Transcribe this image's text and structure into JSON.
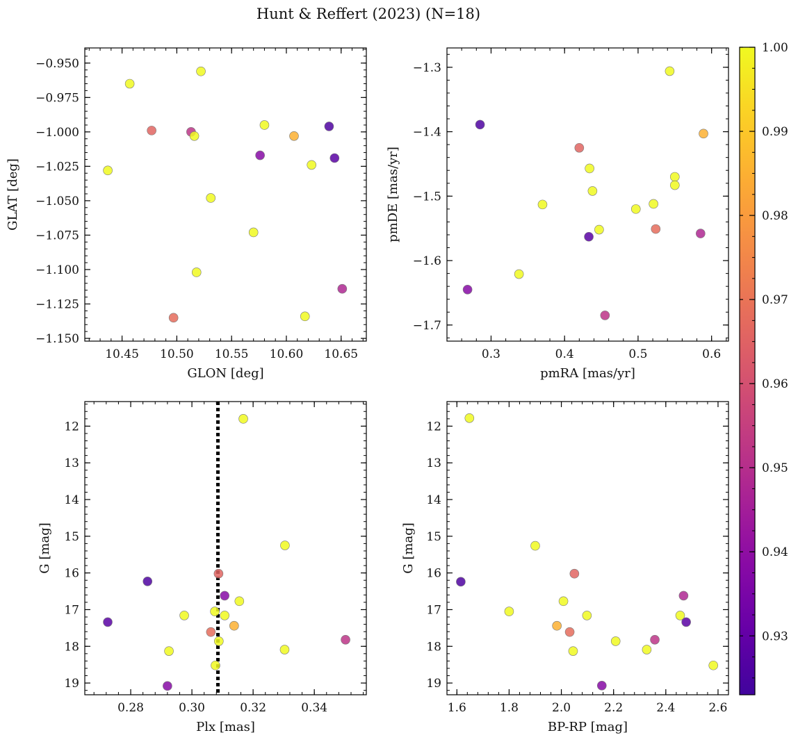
{
  "title": "Hunt & Reffert (2023) (N=18)",
  "colorbar": {
    "cmap": "plasma",
    "range": [
      0.923,
      1.0
    ],
    "ticks": [
      0.93,
      0.94,
      0.95,
      0.96,
      0.97,
      0.98,
      0.99,
      1.0
    ],
    "tick_labels": [
      "0.93",
      "0.94",
      "0.95",
      "0.96",
      "0.97",
      "0.98",
      "0.99",
      "1.00"
    ]
  },
  "chart_data": [
    {
      "type": "scatter",
      "xlabel": "GLON [deg]",
      "ylabel": "GLAT [deg]",
      "xlim": [
        10.416,
        10.673
      ],
      "ylim": [
        -1.152,
        -0.939
      ],
      "xticks": [
        10.45,
        10.5,
        10.55,
        10.6,
        10.65
      ],
      "xtick_labels": [
        "10.45",
        "10.50",
        "10.55",
        "10.60",
        "10.65"
      ],
      "yticks": [
        -0.95,
        -0.975,
        -1.0,
        -1.025,
        -1.05,
        -1.075,
        -1.1,
        -1.125,
        -1.15
      ],
      "ytick_labels": [
        "−0.950",
        "−0.975",
        "−1.000",
        "−1.025",
        "−1.050",
        "−1.075",
        "−1.100",
        "−1.125",
        "−1.150"
      ],
      "points": [
        {
          "x": 10.457,
          "y": -0.965,
          "c": 1.0
        },
        {
          "x": 10.522,
          "y": -0.956,
          "c": 1.0
        },
        {
          "x": 10.477,
          "y": -0.999,
          "c": 0.966
        },
        {
          "x": 10.513,
          "y": -1.0,
          "c": 0.952
        },
        {
          "x": 10.516,
          "y": -1.003,
          "c": 1.0
        },
        {
          "x": 10.58,
          "y": -0.995,
          "c": 1.0
        },
        {
          "x": 10.607,
          "y": -1.003,
          "c": 0.985
        },
        {
          "x": 10.639,
          "y": -0.996,
          "c": 0.926
        },
        {
          "x": 10.576,
          "y": -1.017,
          "c": 0.938
        },
        {
          "x": 10.644,
          "y": -1.019,
          "c": 0.928
        },
        {
          "x": 10.623,
          "y": -1.024,
          "c": 1.0
        },
        {
          "x": 10.437,
          "y": -1.028,
          "c": 1.0
        },
        {
          "x": 10.531,
          "y": -1.048,
          "c": 1.0
        },
        {
          "x": 10.57,
          "y": -1.073,
          "c": 1.0
        },
        {
          "x": 10.518,
          "y": -1.102,
          "c": 1.0
        },
        {
          "x": 10.651,
          "y": -1.114,
          "c": 0.948
        },
        {
          "x": 10.497,
          "y": -1.135,
          "c": 0.968
        },
        {
          "x": 10.617,
          "y": -1.134,
          "c": 1.0
        }
      ]
    },
    {
      "type": "scatter",
      "xlabel": "pmRA [mas/yr]",
      "ylabel": "pmDE [mas/yr]",
      "xlim": [
        0.24,
        0.623
      ],
      "ylim": [
        -1.725,
        -1.27
      ],
      "xticks": [
        0.3,
        0.4,
        0.5,
        0.6
      ],
      "xtick_labels": [
        "0.3",
        "0.4",
        "0.5",
        "0.6"
      ],
      "yticks": [
        -1.3,
        -1.4,
        -1.5,
        -1.6,
        -1.7
      ],
      "ytick_labels": [
        "−1.3",
        "−1.4",
        "−1.5",
        "−1.6",
        "−1.7"
      ],
      "points": [
        {
          "x": 0.543,
          "y": -1.306,
          "c": 1.0
        },
        {
          "x": 0.285,
          "y": -1.389,
          "c": 0.926
        },
        {
          "x": 0.589,
          "y": -1.403,
          "c": 0.985
        },
        {
          "x": 0.42,
          "y": -1.425,
          "c": 0.966
        },
        {
          "x": 0.434,
          "y": -1.457,
          "c": 1.0
        },
        {
          "x": 0.55,
          "y": -1.47,
          "c": 1.0
        },
        {
          "x": 0.55,
          "y": -1.483,
          "c": 1.0
        },
        {
          "x": 0.438,
          "y": -1.492,
          "c": 1.0
        },
        {
          "x": 0.37,
          "y": -1.513,
          "c": 1.0
        },
        {
          "x": 0.521,
          "y": -1.512,
          "c": 1.0
        },
        {
          "x": 0.497,
          "y": -1.52,
          "c": 1.0
        },
        {
          "x": 0.524,
          "y": -1.551,
          "c": 0.968
        },
        {
          "x": 0.447,
          "y": -1.552,
          "c": 1.0
        },
        {
          "x": 0.585,
          "y": -1.558,
          "c": 0.948
        },
        {
          "x": 0.433,
          "y": -1.563,
          "c": 0.928
        },
        {
          "x": 0.338,
          "y": -1.621,
          "c": 1.0
        },
        {
          "x": 0.268,
          "y": -1.645,
          "c": 0.938
        },
        {
          "x": 0.455,
          "y": -1.685,
          "c": 0.952
        }
      ]
    },
    {
      "type": "scatter",
      "xlabel": "Plx [mas]",
      "ylabel": "G [mag]",
      "xlim": [
        0.265,
        0.357
      ],
      "ylim": [
        19.32,
        11.33
      ],
      "xticks": [
        0.28,
        0.3,
        0.32,
        0.34
      ],
      "xtick_labels": [
        "0.28",
        "0.30",
        "0.32",
        "0.34"
      ],
      "yticks": [
        12,
        13,
        14,
        15,
        16,
        17,
        18,
        19
      ],
      "ytick_labels": [
        "12",
        "13",
        "14",
        "15",
        "16",
        "17",
        "18",
        "19"
      ],
      "vline": 0.3085,
      "points": [
        {
          "x": 0.3168,
          "y": 11.8,
          "c": 1.0
        },
        {
          "x": 0.3304,
          "y": 15.25,
          "c": 1.0
        },
        {
          "x": 0.2855,
          "y": 16.23,
          "c": 0.926
        },
        {
          "x": 0.3087,
          "y": 16.02,
          "c": 0.966
        },
        {
          "x": 0.3107,
          "y": 16.62,
          "c": 0.938
        },
        {
          "x": 0.3155,
          "y": 16.77,
          "c": 1.0
        },
        {
          "x": 0.2725,
          "y": 17.34,
          "c": 0.928
        },
        {
          "x": 0.2975,
          "y": 17.16,
          "c": 1.0
        },
        {
          "x": 0.3075,
          "y": 17.05,
          "c": 1.0
        },
        {
          "x": 0.3107,
          "y": 17.16,
          "c": 1.0
        },
        {
          "x": 0.3138,
          "y": 17.44,
          "c": 0.985
        },
        {
          "x": 0.3062,
          "y": 17.61,
          "c": 0.968
        },
        {
          "x": 0.3088,
          "y": 17.86,
          "c": 1.0
        },
        {
          "x": 0.3502,
          "y": 17.82,
          "c": 0.952
        },
        {
          "x": 0.2925,
          "y": 18.13,
          "c": 1.0
        },
        {
          "x": 0.3303,
          "y": 18.09,
          "c": 1.0
        },
        {
          "x": 0.3077,
          "y": 18.52,
          "c": 1.0
        },
        {
          "x": 0.292,
          "y": 19.08,
          "c": 0.938
        }
      ]
    },
    {
      "type": "scatter",
      "xlabel": "BP-RP [mag]",
      "ylabel": "G [mag]",
      "xlim": [
        1.562,
        2.64
      ],
      "ylim": [
        19.32,
        11.33
      ],
      "xticks": [
        1.6,
        1.8,
        2.0,
        2.2,
        2.4,
        2.6
      ],
      "xtick_labels": [
        "1.6",
        "1.8",
        "2.0",
        "2.2",
        "2.4",
        "2.6"
      ],
      "yticks": [
        12,
        13,
        14,
        15,
        16,
        17,
        18,
        19
      ],
      "ytick_labels": [
        "12",
        "13",
        "14",
        "15",
        "16",
        "17",
        "18",
        "19"
      ],
      "points": [
        {
          "x": 1.648,
          "y": 11.78,
          "c": 1.0
        },
        {
          "x": 1.9,
          "y": 15.26,
          "c": 1.0
        },
        {
          "x": 1.615,
          "y": 16.24,
          "c": 0.926
        },
        {
          "x": 2.05,
          "y": 16.02,
          "c": 0.966
        },
        {
          "x": 2.468,
          "y": 16.62,
          "c": 0.948
        },
        {
          "x": 2.008,
          "y": 16.77,
          "c": 1.0
        },
        {
          "x": 1.8,
          "y": 17.05,
          "c": 1.0
        },
        {
          "x": 2.098,
          "y": 17.16,
          "c": 1.0
        },
        {
          "x": 2.455,
          "y": 17.16,
          "c": 1.0
        },
        {
          "x": 2.478,
          "y": 17.34,
          "c": 0.928
        },
        {
          "x": 1.983,
          "y": 17.44,
          "c": 0.985
        },
        {
          "x": 2.032,
          "y": 17.61,
          "c": 0.968
        },
        {
          "x": 2.358,
          "y": 17.82,
          "c": 0.952
        },
        {
          "x": 2.208,
          "y": 17.86,
          "c": 1.0
        },
        {
          "x": 2.045,
          "y": 18.13,
          "c": 1.0
        },
        {
          "x": 2.327,
          "y": 18.09,
          "c": 1.0
        },
        {
          "x": 2.582,
          "y": 18.52,
          "c": 1.0
        },
        {
          "x": 2.155,
          "y": 19.07,
          "c": 0.938
        }
      ]
    }
  ]
}
